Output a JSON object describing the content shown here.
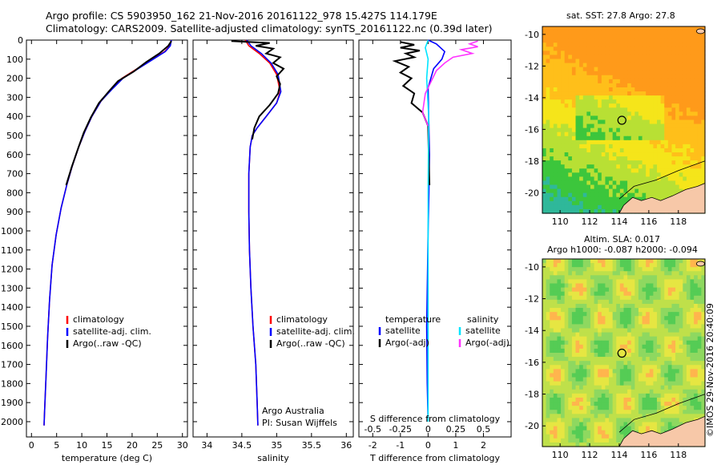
{
  "header": {
    "line1": "Argo profile: CS 5903950_162 21-Nov-2016 20161122_978 15.427S 114.179E",
    "line2": "Climatology: CARS2009. Satellite-adjusted climatology: synTS_20161122.nc (0.39d later)"
  },
  "colors": {
    "climatology": "#ff0000",
    "satellite": "#0000ff",
    "argo": "#000000",
    "sal_satellite": "#00e5ff",
    "sal_argo": "#ff33ff"
  },
  "chart_data": [
    {
      "type": "line",
      "xlabel": "temperature (deg C)",
      "ylabel": "",
      "xlim": [
        -1,
        31
      ],
      "ylim": [
        2080,
        0
      ],
      "xticks": [
        "0",
        "5",
        "10",
        "15",
        "20",
        "25",
        "30"
      ],
      "yticks": [
        "0",
        "100",
        "200",
        "300",
        "400",
        "500",
        "600",
        "700",
        "800",
        "900",
        "1000",
        "1100",
        "1200",
        "1300",
        "1400",
        "1500",
        "1600",
        "1700",
        "1800",
        "1900",
        "2000"
      ],
      "legend": [
        "climatology",
        "satellite-adj. clim.",
        "Argo(..raw -QC)"
      ],
      "series": [
        {
          "name": "climatology",
          "color": "red",
          "x": [
            27.8,
            27.5,
            26.5,
            24.0,
            21.0,
            18.0,
            15.8,
            13.8,
            12.0,
            10.6,
            9.4,
            8.1,
            7.0,
            5.9,
            4.9,
            4.1,
            3.6,
            3.2,
            2.9,
            2.6,
            2.5
          ],
          "y": [
            0,
            30,
            60,
            100,
            150,
            200,
            260,
            320,
            400,
            480,
            560,
            660,
            760,
            880,
            1020,
            1180,
            1360,
            1560,
            1760,
            1950,
            2020
          ]
        },
        {
          "name": "satellite-adj. clim.",
          "color": "blue",
          "x": [
            27.8,
            27.6,
            26.6,
            24.2,
            21.2,
            18.2,
            15.9,
            13.8,
            12.0,
            10.6,
            9.4,
            8.1,
            7.0,
            5.9,
            4.9,
            4.1,
            3.6,
            3.2,
            2.9,
            2.6,
            2.5
          ],
          "y": [
            0,
            30,
            60,
            100,
            150,
            200,
            260,
            320,
            400,
            480,
            560,
            660,
            760,
            880,
            1020,
            1180,
            1360,
            1560,
            1760,
            1950,
            2020
          ]
        },
        {
          "name": "Argo(..raw -QC)",
          "color": "black",
          "x": [
            27.8,
            27.2,
            25.4,
            22.8,
            20.3,
            17.2,
            15.5,
            13.4,
            11.8,
            10.4,
            9.3,
            8.0,
            6.9
          ],
          "y": [
            5,
            30,
            70,
            115,
            165,
            215,
            265,
            330,
            405,
            485,
            565,
            665,
            760
          ]
        }
      ]
    },
    {
      "type": "line",
      "xlabel": "salinity",
      "ylabel": "",
      "xlim": [
        33.8,
        36.1
      ],
      "ylim": [
        2080,
        0
      ],
      "xticks": [
        "34",
        "34.5",
        "35",
        "35.5",
        "36"
      ],
      "legend": [
        "climatology",
        "satellite-adj. clim.",
        "Argo(..raw -QC)"
      ],
      "annotation": [
        "Argo Australia",
        "PI: Susan Wijffels"
      ],
      "series": [
        {
          "name": "climatology",
          "color": "red",
          "x": [
            34.55,
            34.6,
            34.75,
            34.9,
            35.0,
            35.05,
            35.0,
            34.85,
            34.72,
            34.65,
            34.62,
            34.6,
            34.6,
            34.61,
            34.63,
            34.66,
            34.7,
            34.72,
            34.73
          ],
          "y": [
            0,
            30,
            70,
            120,
            180,
            270,
            330,
            400,
            460,
            500,
            560,
            700,
            900,
            1100,
            1300,
            1500,
            1700,
            1900,
            2020
          ]
        },
        {
          "name": "satellite-adj. clim.",
          "color": "blue",
          "x": [
            34.57,
            34.63,
            34.78,
            34.92,
            35.02,
            35.06,
            35.0,
            34.85,
            34.72,
            34.65,
            34.62,
            34.6,
            34.6,
            34.61,
            34.63,
            34.66,
            34.7,
            34.72,
            34.73
          ],
          "y": [
            0,
            30,
            70,
            120,
            180,
            270,
            330,
            400,
            460,
            500,
            560,
            700,
            900,
            1100,
            1300,
            1500,
            1700,
            1900,
            2020
          ]
        },
        {
          "name": "Argo(..raw -QC)",
          "color": "black",
          "x": [
            34.35,
            34.9,
            34.7,
            34.95,
            34.85,
            35.05,
            34.95,
            35.1,
            35.0,
            35.05,
            35.02,
            34.9,
            34.75,
            34.68,
            34.65
          ],
          "y": [
            5,
            15,
            30,
            45,
            70,
            90,
            120,
            150,
            190,
            230,
            280,
            340,
            400,
            460,
            520
          ]
        }
      ]
    },
    {
      "type": "line",
      "xlabel": "T difference from climatology",
      "title": "S difference from climatology",
      "ylabel": "",
      "xlim": [
        -2.5,
        3.0
      ],
      "ylim": [
        2080,
        0
      ],
      "xticks": [
        "-2",
        "-1",
        "0",
        "1",
        "2"
      ],
      "top_xticks": [
        "-0.5",
        "-0.25",
        "0",
        "0.25",
        "0.5"
      ],
      "legend": [
        "temperature",
        "satellite",
        "Argo(-adj)",
        "salinity",
        "satellite",
        "Argo(-adj)"
      ],
      "series": [
        {
          "name": "temperature satellite",
          "color": "blue",
          "x": [
            0.0,
            0.3,
            0.6,
            0.5,
            0.2,
            0.0,
            0.02,
            0.05,
            0.03,
            0.0,
            -0.02,
            -0.05,
            -0.03,
            0.0
          ],
          "y": [
            0,
            20,
            60,
            100,
            150,
            250,
            400,
            600,
            800,
            1000,
            1200,
            1500,
            1800,
            2000
          ]
        },
        {
          "name": "temperature Argo(-adj)",
          "color": "black",
          "x": [
            -1.0,
            -0.5,
            -1.0,
            -0.3,
            -0.8,
            -0.5,
            -1.2,
            -0.7,
            -1.0,
            -0.6,
            -0.9,
            -0.5,
            -0.6,
            -0.2,
            0.0,
            0.02,
            0.05
          ],
          "y": [
            10,
            25,
            40,
            55,
            70,
            90,
            110,
            140,
            170,
            200,
            240,
            280,
            330,
            380,
            450,
            600,
            760
          ]
        },
        {
          "name": "salinity satellite",
          "color": "cyan",
          "x": [
            0.0,
            -0.1,
            0.0,
            -0.05,
            0.02,
            0.0,
            0.0,
            0.0
          ],
          "y": [
            0,
            40,
            100,
            200,
            400,
            800,
            1400,
            2000
          ]
        },
        {
          "name": "salinity Argo(-adj)",
          "color": "magenta",
          "x": [
            1.8,
            1.5,
            1.8,
            1.2,
            1.6,
            0.9,
            0.6,
            0.3,
            0.1,
            -0.1,
            -0.2,
            0.0
          ],
          "y": [
            5,
            20,
            35,
            50,
            70,
            90,
            120,
            160,
            220,
            280,
            380,
            450
          ]
        }
      ]
    },
    {
      "type": "heatmap",
      "title": "sat. SST: 27.8 Argo: 27.8",
      "xticks": [
        "110",
        "112",
        "114",
        "116",
        "118"
      ],
      "yticks": [
        "-10",
        "-12",
        "-14",
        "-16",
        "-18",
        "-20"
      ],
      "xlim": [
        108.8,
        119.8
      ],
      "ylim": [
        -21.3,
        -9.5
      ],
      "marker": {
        "lon": 114.179,
        "lat": -15.427
      }
    },
    {
      "type": "heatmap",
      "title": "Altim. SLA: 0.017",
      "subtitle": "Argo h1000: -0.087 h2000: -0.094",
      "xticks": [
        "110",
        "112",
        "114",
        "116",
        "118"
      ],
      "yticks": [
        "-10",
        "-12",
        "-14",
        "-16",
        "-18",
        "-20"
      ],
      "xlim": [
        108.8,
        119.8
      ],
      "ylim": [
        -21.3,
        -9.5
      ],
      "marker": {
        "lon": 114.179,
        "lat": -15.427
      }
    }
  ],
  "footer": {
    "stamp": "©IMOS 29-Nov-2016 20:40:09"
  }
}
